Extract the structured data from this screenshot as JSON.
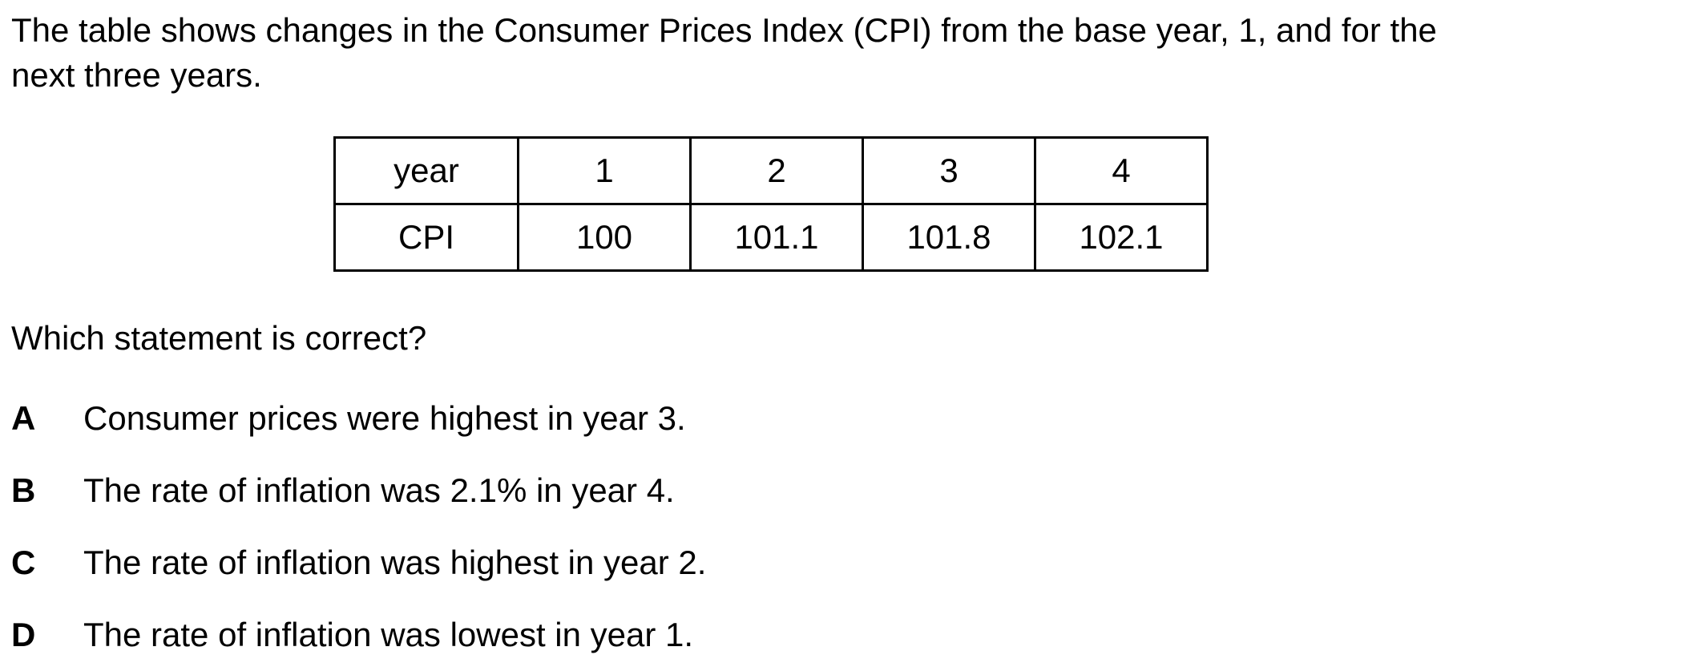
{
  "intro": {
    "line1": "The table shows changes in the Consumer Prices Index (CPI) from the base year, 1, and for the",
    "line2": "next three years."
  },
  "table": {
    "header_label": "year",
    "row_label": "CPI",
    "years": [
      "1",
      "2",
      "3",
      "4"
    ],
    "cpi_values": [
      "100",
      "101.1",
      "101.8",
      "102.1"
    ]
  },
  "question": "Which statement is correct?",
  "options": [
    {
      "letter": "A",
      "text": "Consumer prices were highest in year 3."
    },
    {
      "letter": "B",
      "text": "The rate of inflation was 2.1% in year 4."
    },
    {
      "letter": "C",
      "text": "The rate of inflation was highest in year 2."
    },
    {
      "letter": "D",
      "text": "The rate of inflation was lowest in year 1."
    }
  ]
}
